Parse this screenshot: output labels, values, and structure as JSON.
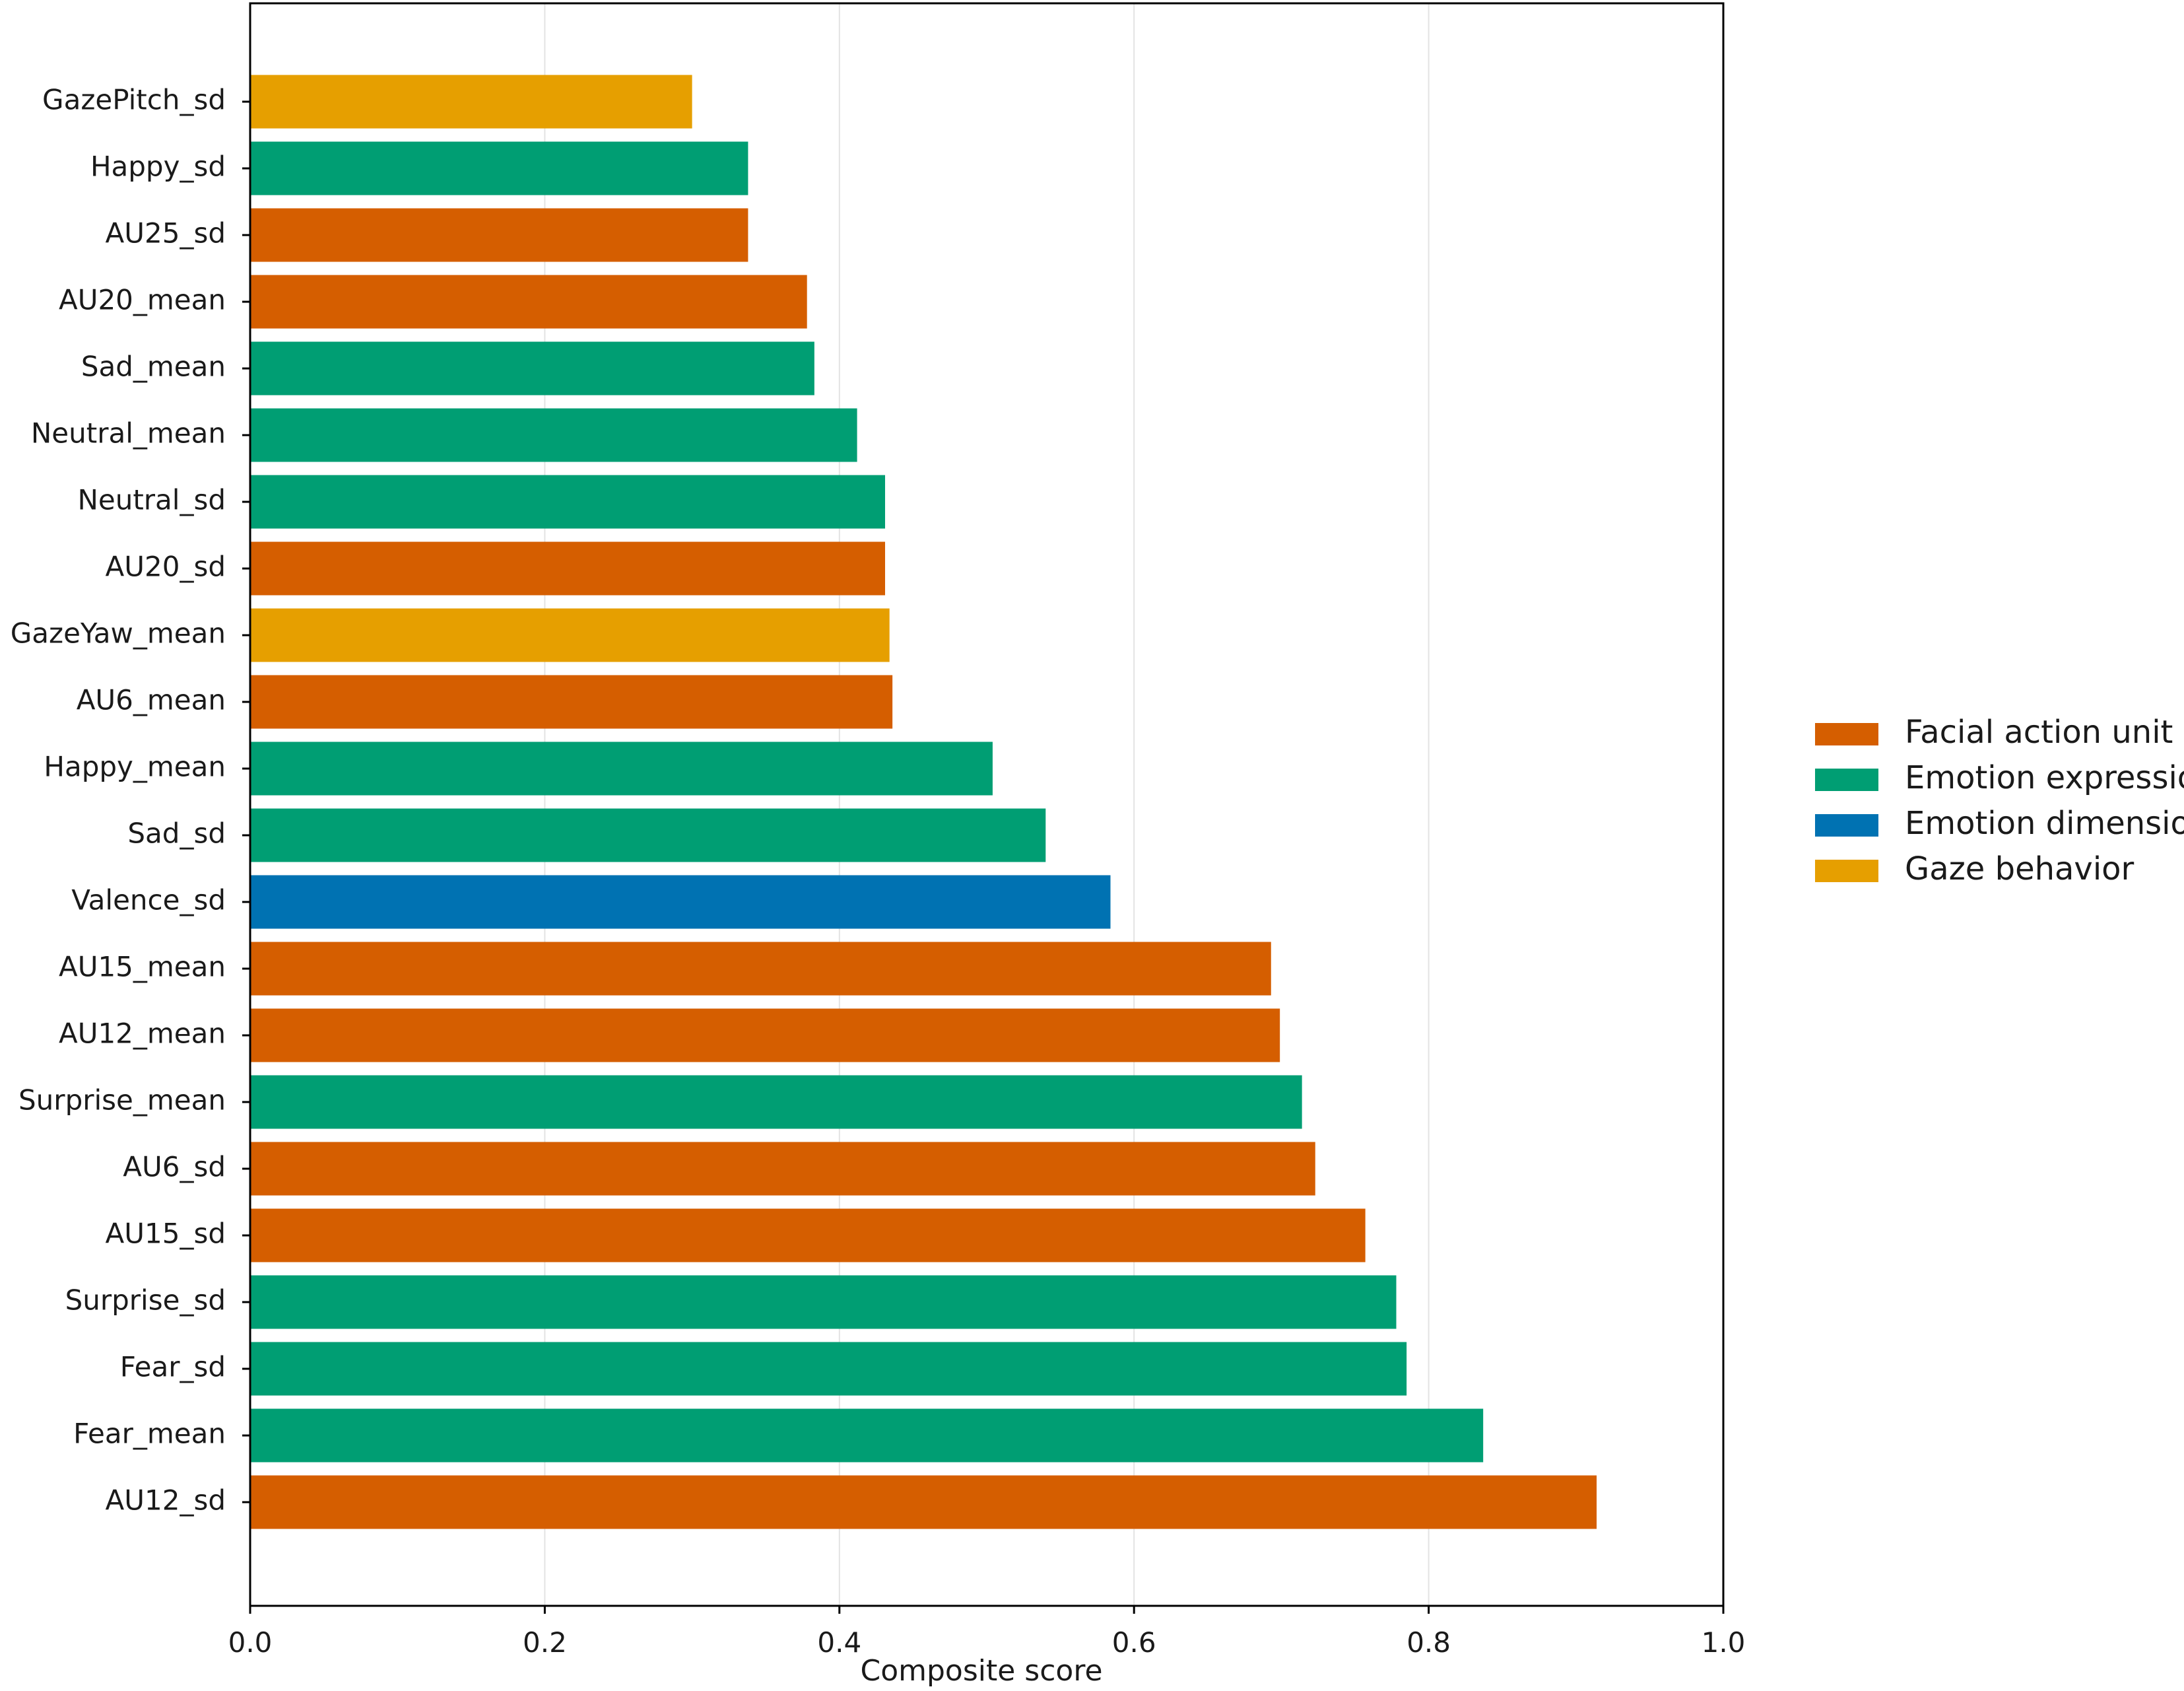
{
  "chart_data": {
    "type": "bar",
    "orientation": "horizontal",
    "xlabel": "Composite score",
    "ylabel": "",
    "xlim": [
      0.0,
      1.0
    ],
    "xticks": [
      "0.0",
      "0.2",
      "0.4",
      "0.6",
      "0.8",
      "1.0"
    ],
    "grid": "vertical, light",
    "legend_position": "right",
    "colors": {
      "Facial action unit": "#D55E00",
      "Emotion expression": "#009E73",
      "Emotion dimension": "#0072B2",
      "Gaze behavior": "#E69F00"
    },
    "legend": [
      "Facial action unit",
      "Emotion expression",
      "Emotion dimension",
      "Gaze behavior"
    ],
    "bars": [
      {
        "label": "GazePitch_sd",
        "value": 0.3,
        "group": "Gaze behavior"
      },
      {
        "label": "Happy_sd",
        "value": 0.338,
        "group": "Emotion expression"
      },
      {
        "label": "AU25_sd",
        "value": 0.338,
        "group": "Facial action unit"
      },
      {
        "label": "AU20_mean",
        "value": 0.378,
        "group": "Facial action unit"
      },
      {
        "label": "Sad_mean",
        "value": 0.383,
        "group": "Emotion expression"
      },
      {
        "label": "Neutral_mean",
        "value": 0.412,
        "group": "Emotion expression"
      },
      {
        "label": "Neutral_sd",
        "value": 0.431,
        "group": "Emotion expression"
      },
      {
        "label": "AU20_sd",
        "value": 0.431,
        "group": "Facial action unit"
      },
      {
        "label": "GazeYaw_mean",
        "value": 0.434,
        "group": "Gaze behavior"
      },
      {
        "label": "AU6_mean",
        "value": 0.436,
        "group": "Facial action unit"
      },
      {
        "label": "Happy_mean",
        "value": 0.504,
        "group": "Emotion expression"
      },
      {
        "label": "Sad_sd",
        "value": 0.54,
        "group": "Emotion expression"
      },
      {
        "label": "Valence_sd",
        "value": 0.584,
        "group": "Emotion dimension"
      },
      {
        "label": "AU15_mean",
        "value": 0.693,
        "group": "Facial action unit"
      },
      {
        "label": "AU12_mean",
        "value": 0.699,
        "group": "Facial action unit"
      },
      {
        "label": "Surprise_mean",
        "value": 0.714,
        "group": "Emotion expression"
      },
      {
        "label": "AU6_sd",
        "value": 0.723,
        "group": "Facial action unit"
      },
      {
        "label": "AU15_sd",
        "value": 0.757,
        "group": "Facial action unit"
      },
      {
        "label": "Surprise_sd",
        "value": 0.778,
        "group": "Emotion expression"
      },
      {
        "label": "Fear_sd",
        "value": 0.785,
        "group": "Emotion expression"
      },
      {
        "label": "Fear_mean",
        "value": 0.837,
        "group": "Emotion expression"
      },
      {
        "label": "AU12_sd",
        "value": 0.914,
        "group": "Facial action unit"
      }
    ]
  }
}
